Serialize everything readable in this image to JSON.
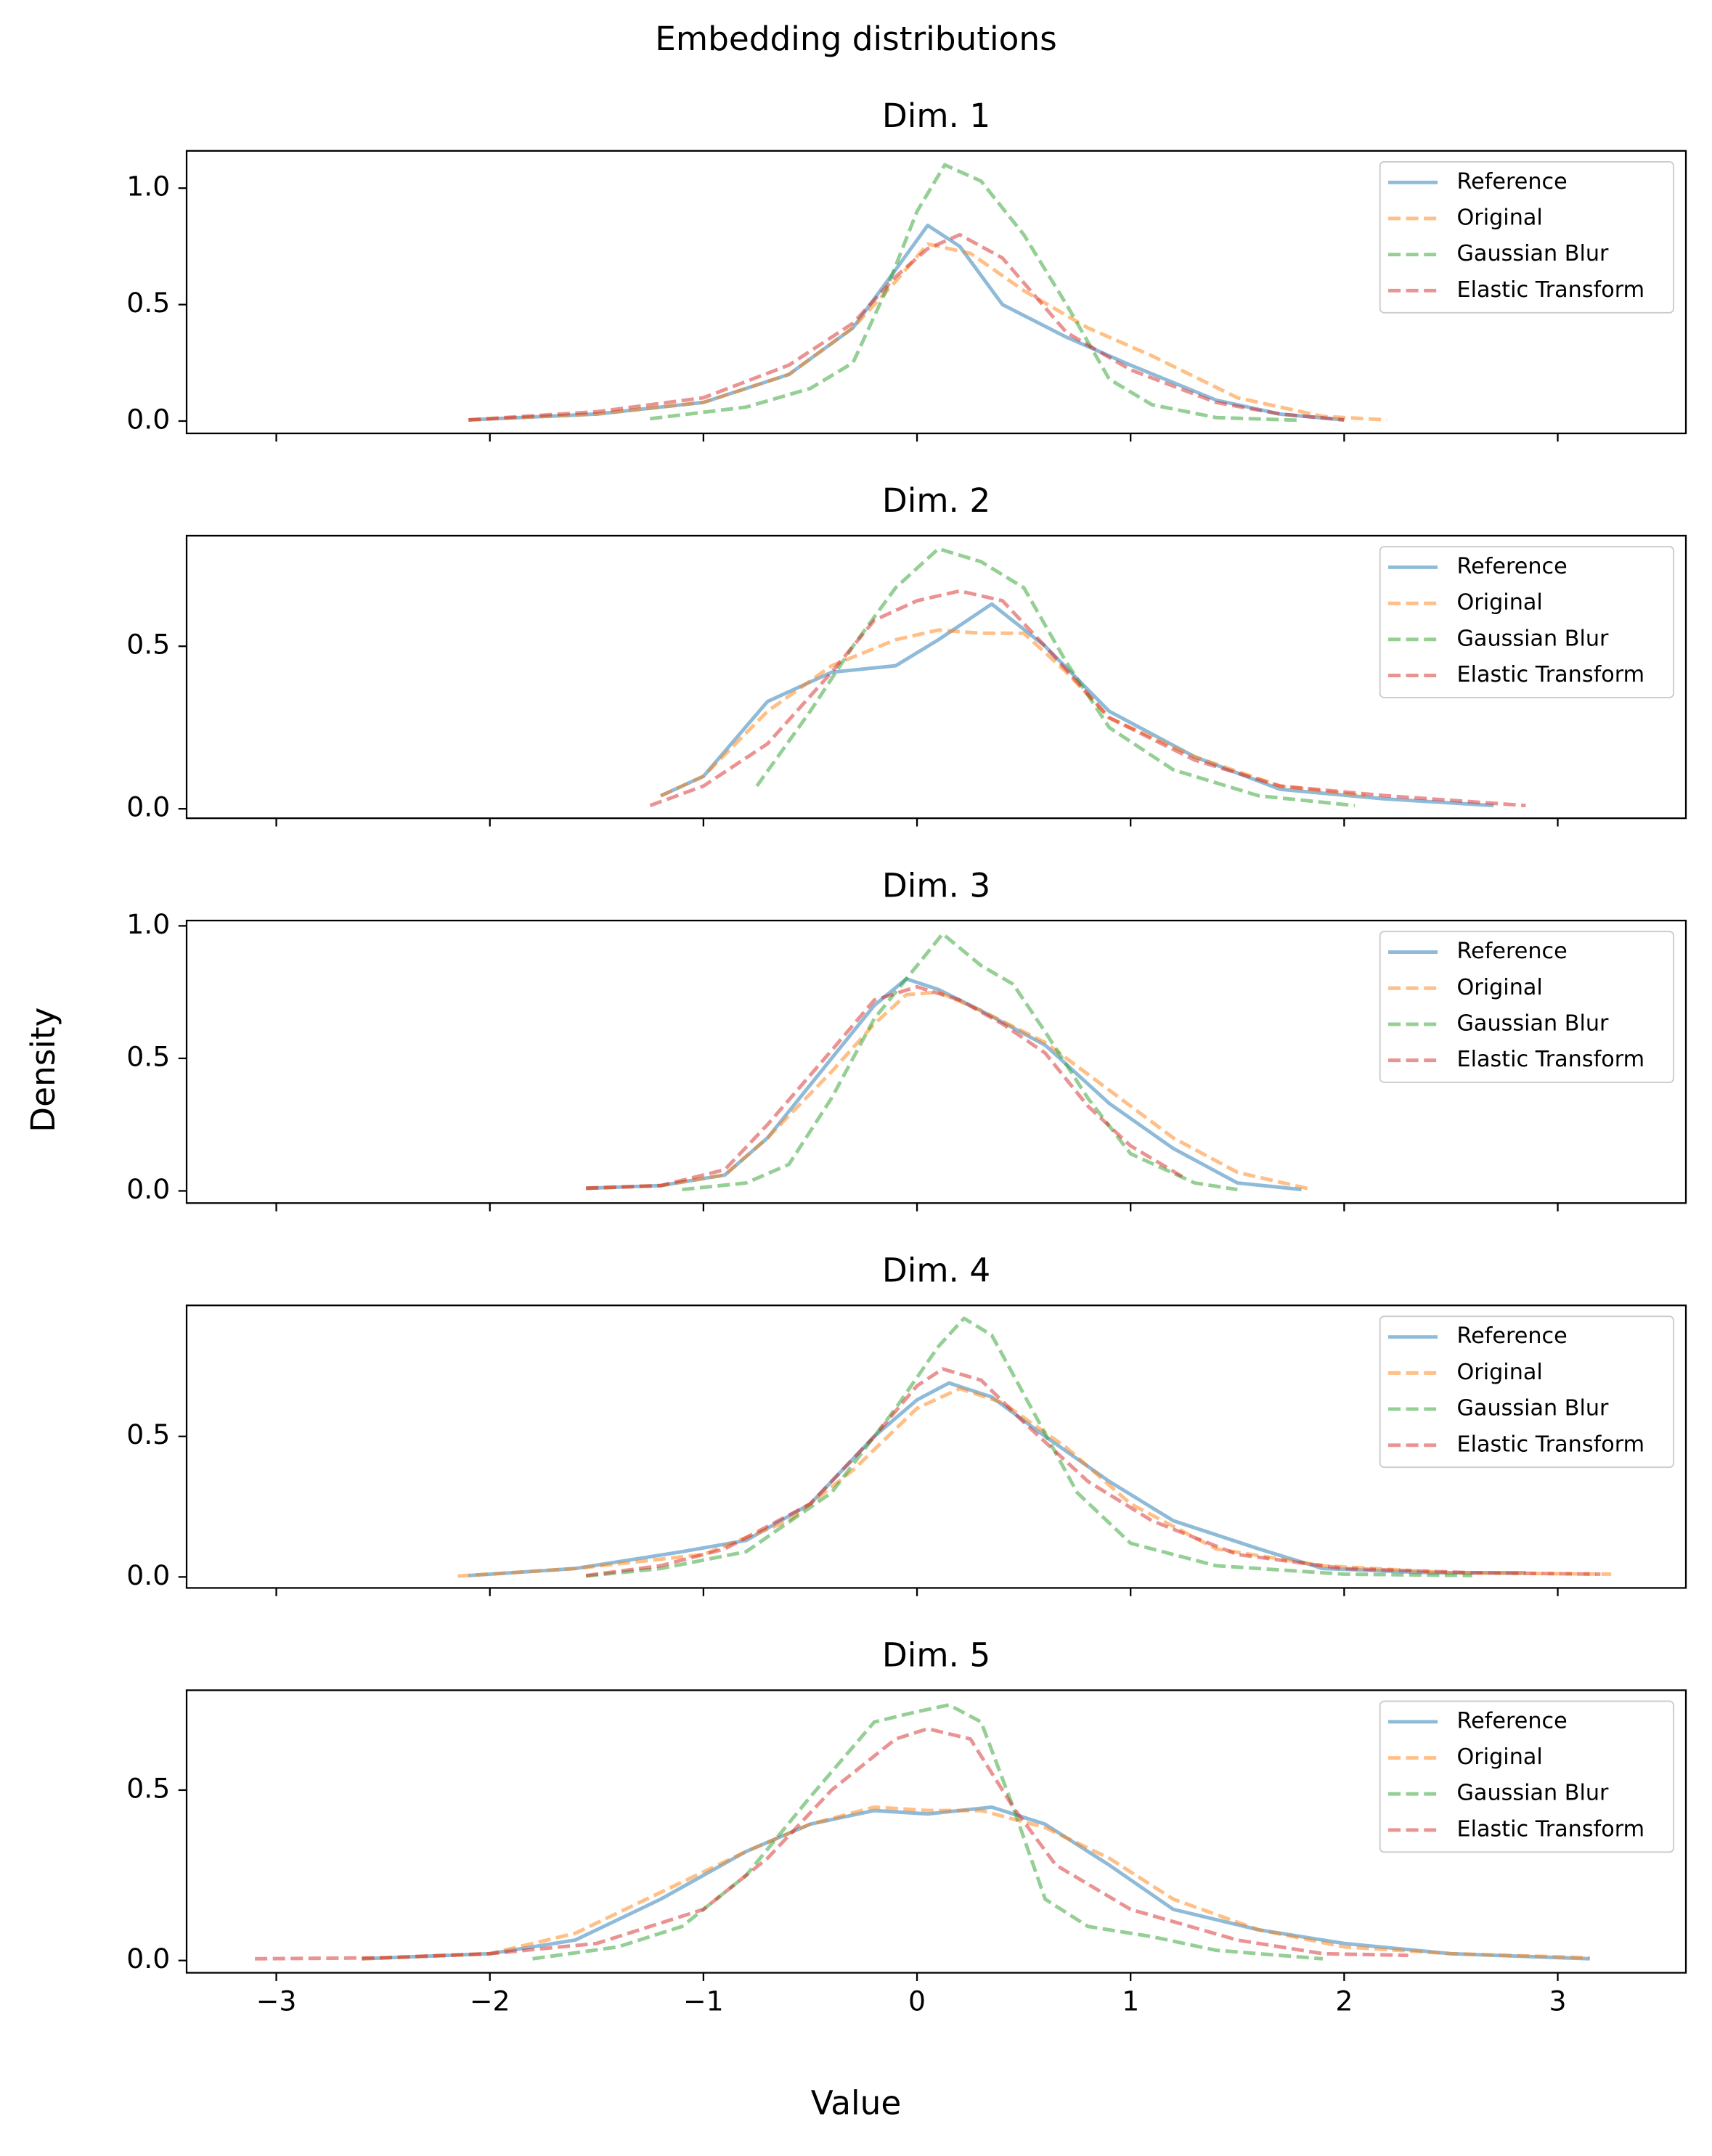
{
  "title": "Embedding distributions",
  "xlabel": "Value",
  "ylabel": "Density",
  "chart_data": [
    {
      "type": "line",
      "title": "Dim. 1",
      "legend": "upper right",
      "xlim": [
        -3.42,
        3.6
      ],
      "ylim": [
        -0.053,
        1.16
      ],
      "xticks": [
        -3,
        -2,
        -1,
        0,
        1,
        2,
        3
      ],
      "yticks": [
        {
          "value": 0,
          "label": "0.0"
        },
        0.5,
        {
          "value": 1,
          "label": "1.0"
        }
      ],
      "series": [
        {
          "name": "Reference",
          "color": "#1f77b4",
          "linestyle": "solid",
          "alpha": 0.5,
          "x": [
            -2.1,
            -1.5,
            -1,
            -0.6,
            -0.3,
            -0.1,
            0.05,
            0.2,
            0.4,
            0.7,
            1.0,
            1.4,
            1.7,
            2.0
          ],
          "values": [
            0.005,
            0.03,
            0.08,
            0.2,
            0.4,
            0.65,
            0.84,
            0.75,
            0.5,
            0.36,
            0.24,
            0.09,
            0.03,
            0.005
          ]
        },
        {
          "name": "Original",
          "color": "#ff7f0e",
          "linestyle": "dashed",
          "alpha": 0.5,
          "x": [
            -2.1,
            -1.5,
            -1,
            -0.6,
            -0.3,
            -0.1,
            0.05,
            0.25,
            0.5,
            0.8,
            1.1,
            1.5,
            1.9,
            2.2
          ],
          "values": [
            0.005,
            0.03,
            0.08,
            0.2,
            0.4,
            0.6,
            0.76,
            0.72,
            0.56,
            0.4,
            0.28,
            0.1,
            0.02,
            0.005
          ]
        },
        {
          "name": "Gaussian Blur",
          "color": "#2ca02c",
          "linestyle": "dashed",
          "alpha": 0.5,
          "x": [
            -1.25,
            -0.8,
            -0.5,
            -0.3,
            -0.15,
            0,
            0.13,
            0.3,
            0.5,
            0.7,
            0.9,
            1.1,
            1.4,
            1.8
          ],
          "values": [
            0.01,
            0.06,
            0.14,
            0.25,
            0.55,
            0.9,
            1.1,
            1.03,
            0.8,
            0.5,
            0.18,
            0.07,
            0.015,
            0.003
          ]
        },
        {
          "name": "Elastic Transform",
          "color": "#d62728",
          "linestyle": "dashed",
          "alpha": 0.5,
          "x": [
            -2.1,
            -1.5,
            -1,
            -0.6,
            -0.3,
            -0.1,
            0.05,
            0.2,
            0.4,
            0.7,
            1.0,
            1.4,
            1.7,
            2.0
          ],
          "values": [
            0.005,
            0.04,
            0.1,
            0.24,
            0.42,
            0.62,
            0.74,
            0.8,
            0.7,
            0.38,
            0.22,
            0.08,
            0.03,
            0.005
          ]
        }
      ]
    },
    {
      "type": "line",
      "title": "Dim. 2",
      "legend": "upper right",
      "xlim": [
        -3.42,
        3.6
      ],
      "ylim": [
        -0.029,
        0.84
      ],
      "xticks": [
        -3,
        -2,
        -1,
        0,
        1,
        2,
        3
      ],
      "yticks": [
        {
          "value": 0,
          "label": "0.0"
        },
        0.5
      ],
      "series": [
        {
          "name": "Reference",
          "color": "#1f77b4",
          "linestyle": "solid",
          "alpha": 0.5,
          "x": [
            -1.2,
            -1,
            -0.7,
            -0.4,
            -0.1,
            0.1,
            0.35,
            0.6,
            0.9,
            1.3,
            1.7,
            2.2,
            2.7
          ],
          "values": [
            0.04,
            0.1,
            0.33,
            0.42,
            0.44,
            0.52,
            0.63,
            0.5,
            0.3,
            0.16,
            0.06,
            0.03,
            0.01
          ]
        },
        {
          "name": "Original",
          "color": "#ff7f0e",
          "linestyle": "dashed",
          "alpha": 0.5,
          "x": [
            -1.2,
            -1,
            -0.7,
            -0.4,
            -0.1,
            0.1,
            0.3,
            0.5,
            0.7,
            0.9,
            1.3,
            1.7,
            2.1
          ],
          "values": [
            0.04,
            0.1,
            0.3,
            0.44,
            0.52,
            0.55,
            0.54,
            0.54,
            0.42,
            0.28,
            0.16,
            0.07,
            0.04
          ]
        },
        {
          "name": "Gaussian Blur",
          "color": "#2ca02c",
          "linestyle": "dashed",
          "alpha": 0.5,
          "x": [
            -0.75,
            -0.5,
            -0.3,
            -0.1,
            0.1,
            0.3,
            0.5,
            0.7,
            0.9,
            1.2,
            1.6,
            2.05
          ],
          "values": [
            0.07,
            0.3,
            0.5,
            0.68,
            0.8,
            0.76,
            0.68,
            0.45,
            0.25,
            0.12,
            0.04,
            0.01
          ]
        },
        {
          "name": "Elastic Transform",
          "color": "#d62728",
          "linestyle": "dashed",
          "alpha": 0.5,
          "x": [
            -1.25,
            -1.0,
            -0.7,
            -0.4,
            -0.2,
            0,
            0.2,
            0.4,
            0.6,
            0.9,
            1.3,
            1.7,
            2.2,
            2.85
          ],
          "values": [
            0.01,
            0.07,
            0.2,
            0.42,
            0.58,
            0.64,
            0.67,
            0.64,
            0.5,
            0.28,
            0.15,
            0.07,
            0.04,
            0.01
          ]
        }
      ]
    },
    {
      "type": "line",
      "title": "Dim. 3",
      "legend": "upper right",
      "xlim": [
        -3.42,
        3.6
      ],
      "ylim": [
        -0.046,
        1.02
      ],
      "xticks": [
        -3,
        -2,
        -1,
        0,
        1,
        2,
        3
      ],
      "yticks": [
        {
          "value": 0,
          "label": "0.0"
        },
        0.5,
        {
          "value": 1,
          "label": "1.0"
        }
      ],
      "series": [
        {
          "name": "Reference",
          "color": "#1f77b4",
          "linestyle": "solid",
          "alpha": 0.5,
          "x": [
            -1.55,
            -1.2,
            -0.9,
            -0.7,
            -0.4,
            -0.2,
            -0.05,
            0.1,
            0.3,
            0.6,
            0.9,
            1.2,
            1.5,
            1.8
          ],
          "values": [
            0.01,
            0.02,
            0.06,
            0.2,
            0.5,
            0.7,
            0.8,
            0.76,
            0.68,
            0.55,
            0.33,
            0.16,
            0.03,
            0.005
          ]
        },
        {
          "name": "Original",
          "color": "#ff7f0e",
          "linestyle": "dashed",
          "alpha": 0.5,
          "x": [
            -1.55,
            -1.2,
            -0.9,
            -0.7,
            -0.4,
            -0.2,
            -0.05,
            0.1,
            0.3,
            0.6,
            0.9,
            1.2,
            1.5,
            1.85
          ],
          "values": [
            0.01,
            0.02,
            0.06,
            0.2,
            0.45,
            0.63,
            0.74,
            0.75,
            0.68,
            0.56,
            0.38,
            0.2,
            0.07,
            0.005
          ]
        },
        {
          "name": "Gaussian Blur",
          "color": "#2ca02c",
          "linestyle": "dashed",
          "alpha": 0.5,
          "x": [
            -1.1,
            -0.8,
            -0.6,
            -0.4,
            -0.2,
            0,
            0.12,
            0.3,
            0.45,
            0.6,
            0.8,
            1.0,
            1.3,
            1.5
          ],
          "values": [
            0.005,
            0.03,
            0.1,
            0.35,
            0.65,
            0.85,
            0.97,
            0.85,
            0.78,
            0.6,
            0.35,
            0.14,
            0.03,
            0.005
          ]
        },
        {
          "name": "Elastic Transform",
          "color": "#d62728",
          "linestyle": "dashed",
          "alpha": 0.5,
          "x": [
            -1.55,
            -1.2,
            -0.9,
            -0.7,
            -0.4,
            -0.2,
            0,
            0.2,
            0.4,
            0.6,
            0.8,
            1.0,
            1.25
          ],
          "values": [
            0.01,
            0.02,
            0.08,
            0.25,
            0.53,
            0.72,
            0.77,
            0.72,
            0.63,
            0.52,
            0.32,
            0.17,
            0.05
          ]
        }
      ]
    },
    {
      "type": "line",
      "title": "Dim. 4",
      "legend": "upper right",
      "xlim": [
        -3.42,
        3.6
      ],
      "ylim": [
        -0.039,
        0.966
      ],
      "xticks": [
        -3,
        -2,
        -1,
        0,
        1,
        2,
        3
      ],
      "yticks": [
        {
          "value": 0,
          "label": "0.0"
        },
        0.5
      ],
      "series": [
        {
          "name": "Reference",
          "color": "#1f77b4",
          "linestyle": "solid",
          "alpha": 0.5,
          "x": [
            -2.1,
            -1.6,
            -1.1,
            -0.8,
            -0.5,
            -0.2,
            0,
            0.15,
            0.35,
            0.6,
            0.9,
            1.2,
            1.6,
            1.9,
            2.4,
            2.85
          ],
          "values": [
            0.005,
            0.03,
            0.09,
            0.13,
            0.26,
            0.5,
            0.63,
            0.69,
            0.64,
            0.5,
            0.34,
            0.2,
            0.1,
            0.03,
            0.015,
            0.015
          ]
        },
        {
          "name": "Original",
          "color": "#ff7f0e",
          "linestyle": "dashed",
          "alpha": 0.5,
          "x": [
            -2.15,
            -1.6,
            -1.0,
            -0.6,
            -0.3,
            0,
            0.2,
            0.4,
            0.7,
            1.0,
            1.4,
            1.9,
            2.5,
            3.25
          ],
          "values": [
            0.003,
            0.03,
            0.08,
            0.2,
            0.38,
            0.6,
            0.67,
            0.62,
            0.46,
            0.26,
            0.1,
            0.04,
            0.015,
            0.01
          ]
        },
        {
          "name": "Gaussian Blur",
          "color": "#2ca02c",
          "linestyle": "dashed",
          "alpha": 0.5,
          "x": [
            -1.55,
            -1.2,
            -0.8,
            -0.4,
            -0.1,
            0.1,
            0.22,
            0.35,
            0.55,
            0.75,
            1.0,
            1.4,
            2.0,
            2.6
          ],
          "values": [
            0.003,
            0.03,
            0.09,
            0.3,
            0.6,
            0.82,
            0.92,
            0.86,
            0.58,
            0.3,
            0.12,
            0.04,
            0.01,
            0.005
          ]
        },
        {
          "name": "Elastic Transform",
          "color": "#d62728",
          "linestyle": "dashed",
          "alpha": 0.5,
          "x": [
            -1.55,
            -1.2,
            -0.9,
            -0.5,
            -0.2,
            0,
            0.12,
            0.3,
            0.5,
            0.8,
            1.1,
            1.5,
            2.0,
            2.6,
            3.2
          ],
          "values": [
            0.005,
            0.04,
            0.1,
            0.26,
            0.5,
            0.68,
            0.74,
            0.7,
            0.55,
            0.34,
            0.2,
            0.08,
            0.03,
            0.015,
            0.01
          ]
        }
      ]
    },
    {
      "type": "line",
      "title": "Dim. 5",
      "legend": "upper right",
      "xlim": [
        -3.42,
        3.6
      ],
      "ylim": [
        -0.036,
        0.793
      ],
      "xticks": [
        {
          "value": -3,
          "label": "−3"
        },
        {
          "value": -2,
          "label": "−2"
        },
        {
          "value": -1,
          "label": "−1"
        },
        0,
        1,
        2,
        3
      ],
      "yticks": [
        {
          "value": 0,
          "label": "0.0"
        },
        0.5
      ],
      "series": [
        {
          "name": "Reference",
          "color": "#1f77b4",
          "linestyle": "solid",
          "alpha": 0.5,
          "x": [
            -2.6,
            -2,
            -1.6,
            -1.2,
            -0.8,
            -0.5,
            -0.2,
            0.05,
            0.35,
            0.6,
            0.9,
            1.2,
            1.6,
            2,
            2.5,
            3.15
          ],
          "values": [
            0.005,
            0.02,
            0.06,
            0.18,
            0.32,
            0.4,
            0.44,
            0.43,
            0.45,
            0.4,
            0.28,
            0.15,
            0.09,
            0.05,
            0.02,
            0.005
          ]
        },
        {
          "name": "Original",
          "color": "#ff7f0e",
          "linestyle": "dashed",
          "alpha": 0.5,
          "x": [
            -2.6,
            -2,
            -1.6,
            -1.2,
            -0.8,
            -0.5,
            -0.2,
            0.05,
            0.3,
            0.6,
            0.9,
            1.2,
            1.6,
            2,
            2.5,
            3.15
          ],
          "values": [
            0.005,
            0.02,
            0.08,
            0.2,
            0.32,
            0.4,
            0.45,
            0.44,
            0.44,
            0.39,
            0.3,
            0.18,
            0.09,
            0.04,
            0.02,
            0.008
          ]
        },
        {
          "name": "Gaussian Blur",
          "color": "#2ca02c",
          "linestyle": "dashed",
          "alpha": 0.5,
          "x": [
            -1.8,
            -1.4,
            -1.1,
            -0.8,
            -0.5,
            -0.2,
            0,
            0.15,
            0.3,
            0.45,
            0.6,
            0.8,
            1.1,
            1.4,
            1.9
          ],
          "values": [
            0.005,
            0.04,
            0.1,
            0.25,
            0.48,
            0.7,
            0.73,
            0.75,
            0.7,
            0.45,
            0.18,
            0.1,
            0.07,
            0.03,
            0.005
          ]
        },
        {
          "name": "Elastic Transform",
          "color": "#d62728",
          "linestyle": "dashed",
          "alpha": 0.5,
          "x": [
            -3.1,
            -2.5,
            -2,
            -1.5,
            -1.0,
            -0.7,
            -0.4,
            -0.1,
            0.05,
            0.25,
            0.45,
            0.65,
            1.0,
            1.5,
            1.9,
            2.3
          ],
          "values": [
            0.005,
            0.008,
            0.02,
            0.05,
            0.15,
            0.3,
            0.5,
            0.65,
            0.68,
            0.65,
            0.45,
            0.28,
            0.15,
            0.06,
            0.02,
            0.015
          ]
        }
      ]
    }
  ]
}
